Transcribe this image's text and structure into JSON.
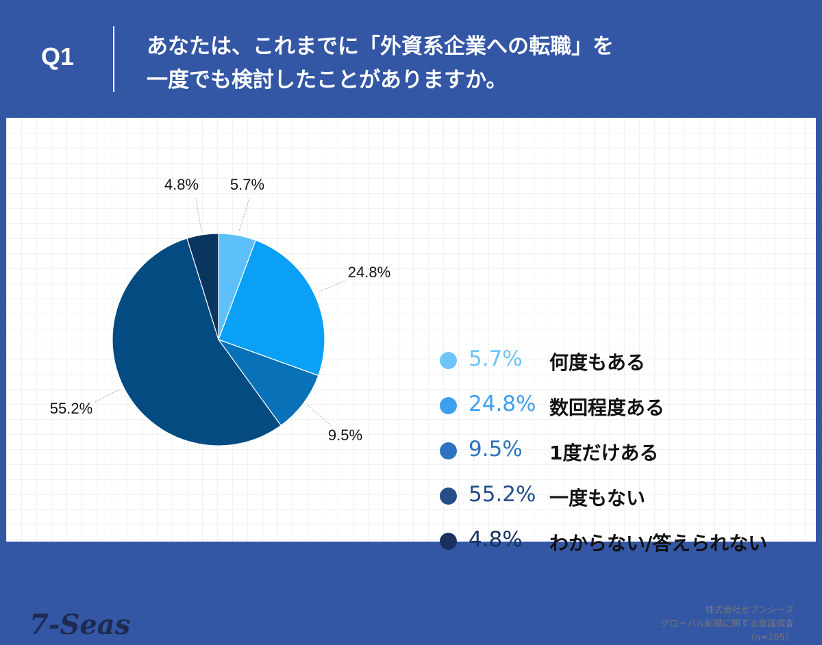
{
  "header": {
    "question_no": "Q1",
    "title_lines": [
      "あなたは、これまでに「外資系企業への転職」を",
      "一度でも検討したことがありますか。"
    ]
  },
  "chart_data": {
    "type": "pie",
    "title": "",
    "start_angle_deg": 0,
    "direction": "clockwise",
    "slices": [
      {
        "label": "何度もある",
        "value": 5.7,
        "display": "5.7%",
        "color": "#5ec0fb",
        "legend_color": "#6cc4fa",
        "legend_text_color": "#6cc4fa"
      },
      {
        "label": "数回程度ある",
        "value": 24.8,
        "display": "24.8%",
        "color": "#0aa0f5",
        "legend_color": "#3d9ff0",
        "legend_text_color": "#3d9ff0"
      },
      {
        "label": "1度だけある",
        "value": 9.5,
        "display": "9.5%",
        "color": "#0871b8",
        "legend_color": "#2d73bd",
        "legend_text_color": "#2d73bd"
      },
      {
        "label": "一度もない",
        "value": 55.2,
        "display": "55.2%",
        "color": "#034b80",
        "legend_color": "#234e8a",
        "legend_text_color": "#234e8a"
      },
      {
        "label": "わからない/答えられない",
        "value": 4.8,
        "display": "4.8%",
        "color": "#0a3560",
        "legend_color": "#1a315f",
        "legend_text_color": "#1a315f"
      }
    ]
  },
  "footer": {
    "logo": "7-Seas",
    "source_lines": [
      "株式会社セブンシーズ",
      "グローバル転職に関する意識調査",
      "（n=105）"
    ]
  },
  "colors": {
    "background": "#3356a5",
    "panel": "#ffffff",
    "leader_line": "#aaaaaa"
  }
}
